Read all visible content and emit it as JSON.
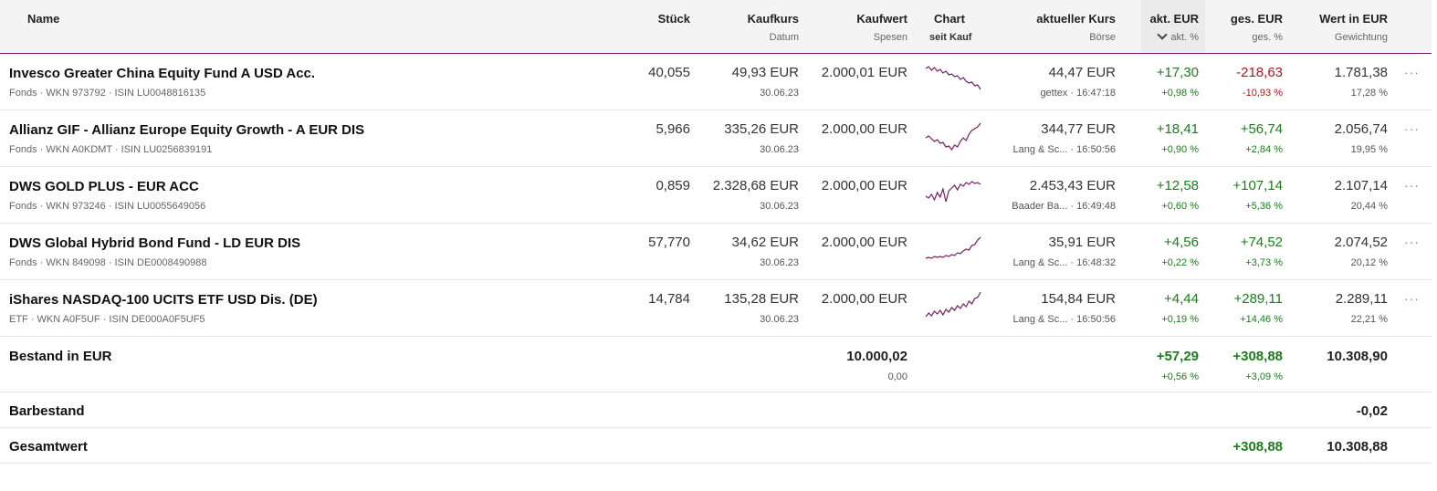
{
  "header": {
    "name": "Name",
    "stueck": "Stück",
    "kaufkurs": "Kaufkurs",
    "datum": "Datum",
    "kaufwert": "Kaufwert",
    "spesen": "Spesen",
    "chart": "Chart",
    "seit_kauf": "seit Kauf",
    "aktueller_kurs": "aktueller Kurs",
    "boerse": "Börse",
    "akt_eur": "akt. EUR",
    "akt_pct": "akt. %",
    "ges_eur": "ges. EUR",
    "ges_pct": "ges. %",
    "wert": "Wert in EUR",
    "gewichtung": "Gewichtung"
  },
  "positions": [
    {
      "name": "Invesco Greater China Equity Fund A USD Acc.",
      "sub": "Fonds · WKN 973792 · ISIN LU0048816135",
      "stueck": "40,055",
      "kaufkurs": "49,93 EUR",
      "datum": "30.06.23",
      "kaufwert": "2.000,01 EUR",
      "kurs": "44,47 EUR",
      "boerse": "gettex · 16:47:18",
      "akt_eur": "+17,30",
      "akt_pct": "+0,98 %",
      "ges_eur": "-218,63",
      "ges_pct": "-10,93 %",
      "wert": "1.781,38",
      "gew": "17,28 %",
      "more": "···"
    },
    {
      "name": "Allianz GIF - Allianz Europe Equity Growth - A EUR DIS",
      "sub": "Fonds · WKN A0KDMT · ISIN LU0256839191",
      "stueck": "5,966",
      "kaufkurs": "335,26 EUR",
      "datum": "30.06.23",
      "kaufwert": "2.000,00 EUR",
      "kurs": "344,77 EUR",
      "boerse": "Lang & Sc... · 16:50:56",
      "akt_eur": "+18,41",
      "akt_pct": "+0,90 %",
      "ges_eur": "+56,74",
      "ges_pct": "+2,84 %",
      "wert": "2.056,74",
      "gew": "19,95 %",
      "more": "···"
    },
    {
      "name": "DWS GOLD PLUS - EUR ACC",
      "sub": "Fonds · WKN 973246 · ISIN LU0055649056",
      "stueck": "0,859",
      "kaufkurs": "2.328,68 EUR",
      "datum": "30.06.23",
      "kaufwert": "2.000,00 EUR",
      "kurs": "2.453,43 EUR",
      "boerse": "Baader Ba... · 16:49:48",
      "akt_eur": "+12,58",
      "akt_pct": "+0,60 %",
      "ges_eur": "+107,14",
      "ges_pct": "+5,36 %",
      "wert": "2.107,14",
      "gew": "20,44 %",
      "more": "···"
    },
    {
      "name": "DWS Global Hybrid Bond Fund - LD EUR DIS",
      "sub": "Fonds · WKN 849098 · ISIN DE0008490988",
      "stueck": "57,770",
      "kaufkurs": "34,62 EUR",
      "datum": "30.06.23",
      "kaufwert": "2.000,00 EUR",
      "kurs": "35,91 EUR",
      "boerse": "Lang & Sc... · 16:48:32",
      "akt_eur": "+4,56",
      "akt_pct": "+0,22 %",
      "ges_eur": "+74,52",
      "ges_pct": "+3,73 %",
      "wert": "2.074,52",
      "gew": "20,12 %",
      "more": "···"
    },
    {
      "name": "iShares NASDAQ-100 UCITS ETF USD Dis. (DE)",
      "sub": "ETF · WKN A0F5UF · ISIN DE000A0F5UF5",
      "stueck": "14,784",
      "kaufkurs": "135,28 EUR",
      "datum": "30.06.23",
      "kaufwert": "2.000,00 EUR",
      "kurs": "154,84 EUR",
      "boerse": "Lang & Sc... · 16:50:56",
      "akt_eur": "+4,44",
      "akt_pct": "+0,19 %",
      "ges_eur": "+289,11",
      "ges_pct": "+14,46 %",
      "wert": "2.289,11",
      "gew": "22,21 %",
      "more": "···"
    }
  ],
  "bestand": {
    "label": "Bestand in EUR",
    "kaufwert": "10.000,02",
    "spesen": "0,00",
    "akt_eur": "+57,29",
    "akt_pct": "+0,56 %",
    "ges_eur": "+308,88",
    "ges_pct": "+3,09 %",
    "wert": "10.308,90"
  },
  "barbestand": {
    "label": "Barbestand",
    "wert": "-0,02"
  },
  "gesamt": {
    "label": "Gesamtwert",
    "ges_eur": "+308,88",
    "wert": "10.308,88"
  },
  "sparklines": [
    [
      6,
      4,
      8,
      5,
      9,
      7,
      11,
      9,
      13,
      12,
      15,
      14,
      18,
      16,
      20,
      22,
      21,
      25,
      24,
      29
    ],
    [
      20,
      18,
      21,
      24,
      22,
      26,
      25,
      30,
      29,
      33,
      28,
      30,
      24,
      20,
      23,
      16,
      12,
      10,
      8,
      4
    ],
    [
      22,
      24,
      20,
      26,
      18,
      23,
      14,
      28,
      16,
      13,
      10,
      15,
      9,
      11,
      7,
      9,
      6,
      8,
      7,
      9
    ],
    [
      28,
      27,
      28,
      26,
      27,
      26,
      27,
      25,
      26,
      24,
      25,
      22,
      23,
      20,
      18,
      19,
      14,
      13,
      8,
      5
    ],
    [
      30,
      26,
      29,
      24,
      27,
      23,
      28,
      22,
      25,
      20,
      23,
      18,
      21,
      16,
      19,
      13,
      16,
      10,
      9,
      3
    ]
  ],
  "colors": {
    "accent": "#7a1f66",
    "positive": "#1a7f1a",
    "negative": "#b01818"
  },
  "icons": {
    "sort": "chevron-down-icon",
    "more": "more-icon"
  }
}
